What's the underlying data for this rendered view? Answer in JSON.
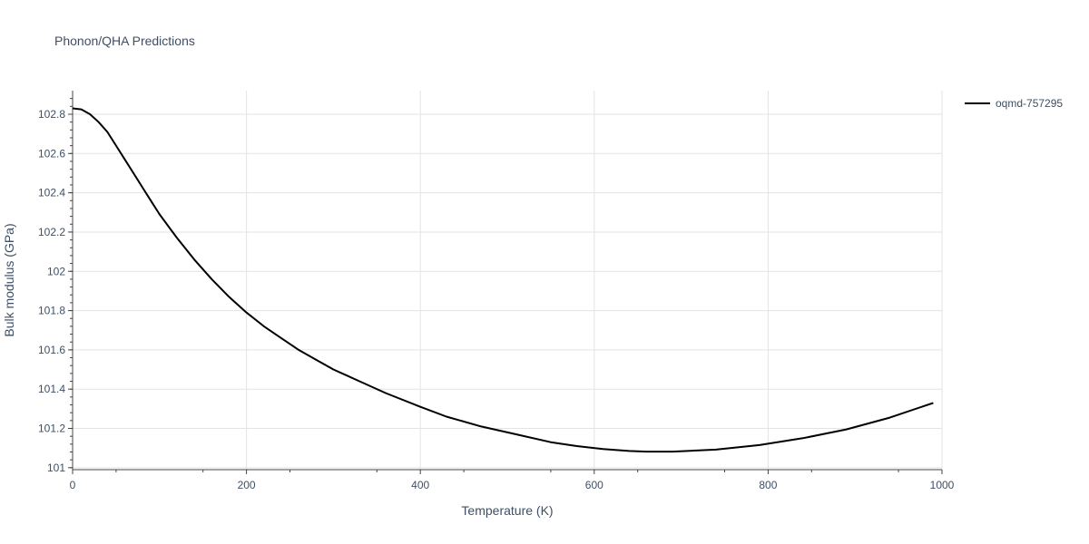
{
  "chart_data": {
    "type": "line",
    "title": "Phonon/QHA Predictions",
    "xlabel": "Temperature (K)",
    "ylabel": "Bulk modulus (GPa)",
    "xlim": [
      0,
      1000
    ],
    "ylim": [
      100.99,
      102.92
    ],
    "x_ticks": [
      0,
      200,
      400,
      600,
      800,
      1000
    ],
    "x_tick_labels": [
      "0",
      "200",
      "400",
      "600",
      "800",
      "1000"
    ],
    "y_ticks": [
      101,
      101.2,
      101.4,
      101.6,
      101.8,
      102,
      102.2,
      102.4,
      102.6,
      102.8
    ],
    "y_tick_labels": [
      "101",
      "101.2",
      "101.4",
      "101.6",
      "101.8",
      "102",
      "102.2",
      "102.4",
      "102.6",
      "102.8"
    ],
    "grid": true,
    "legend_position": "top-right-outside",
    "series": [
      {
        "name": "oqmd-757295",
        "color": "#000000",
        "x": [
          0,
          10,
          20,
          30,
          40,
          50,
          60,
          70,
          80,
          90,
          100,
          120,
          140,
          160,
          180,
          200,
          220,
          240,
          260,
          280,
          300,
          330,
          360,
          400,
          430,
          470,
          510,
          550,
          580,
          610,
          640,
          660,
          690,
          740,
          790,
          840,
          890,
          940,
          990
        ],
        "y": [
          102.83,
          102.825,
          102.8,
          102.76,
          102.71,
          102.64,
          102.57,
          102.5,
          102.43,
          102.36,
          102.29,
          102.17,
          102.06,
          101.96,
          101.87,
          101.79,
          101.72,
          101.66,
          101.6,
          101.55,
          101.5,
          101.44,
          101.38,
          101.31,
          101.26,
          101.21,
          101.17,
          101.13,
          101.11,
          101.095,
          101.085,
          101.082,
          101.082,
          101.092,
          101.115,
          101.15,
          101.195,
          101.255,
          101.33
        ]
      }
    ]
  }
}
